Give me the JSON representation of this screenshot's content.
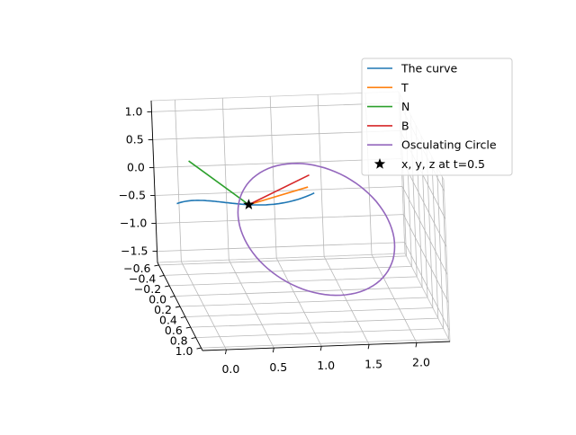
{
  "chart_data": {
    "type": "line3d",
    "title": "",
    "x_axis": {
      "ticks": [
        0.0,
        0.5,
        1.0,
        1.5,
        2.0
      ],
      "tick_labels": [
        "0.0",
        "0.5",
        "1.0",
        "1.5",
        "2.0"
      ],
      "range": [
        -0.25,
        2.35
      ]
    },
    "y_axis": {
      "ticks": [
        -0.6,
        -0.4,
        -0.2,
        0.0,
        0.2,
        0.4,
        0.6,
        0.8,
        1.0
      ],
      "tick_labels": [
        "−0.6",
        "−0.4",
        "−0.2",
        "0.0",
        "0.2",
        "0.4",
        "0.6",
        "0.8",
        "1.0"
      ],
      "range": [
        -0.65,
        1.05
      ]
    },
    "z_axis": {
      "ticks": [
        -1.5,
        -1.0,
        -0.5,
        0.0,
        0.5,
        1.0
      ],
      "tick_labels": [
        "−1.5",
        "−1.0",
        "−0.5",
        "0.0",
        "0.5",
        "1.0"
      ],
      "range": [
        -1.7,
        1.2
      ]
    },
    "grid": true,
    "legend_position": "top-right",
    "point": {
      "t": 0.5,
      "x": 0.5,
      "y": 0.25,
      "z": 0.125
    },
    "series": [
      {
        "name": "The curve",
        "color": "#1f77b4",
        "kind": "curve",
        "param": "t",
        "t_range": [
          -0.2,
          1.0
        ],
        "samples": 60
      },
      {
        "name": "T",
        "color": "#ff7f0e",
        "kind": "segment",
        "start": [
          0.5,
          0.25,
          0.125
        ],
        "end": [
          1.0,
          0.75,
          0.875
        ]
      },
      {
        "name": "N",
        "color": "#2ca02c",
        "kind": "segment",
        "start": [
          0.5,
          0.25,
          0.125
        ],
        "end": [
          -0.1,
          0.2,
          0.9
        ]
      },
      {
        "name": "B",
        "color": "#d62728",
        "kind": "segment",
        "start": [
          0.5,
          0.25,
          0.125
        ],
        "end": [
          1.3,
          -0.35,
          0.05
        ]
      },
      {
        "name": "Osculating Circle",
        "color": "#9467bd",
        "kind": "circle",
        "center": [
          1.25,
          0.05,
          -0.55
        ],
        "radius": 0.85,
        "samples": 90
      },
      {
        "name": "x, y, z at t=0.5",
        "color": "#000000",
        "kind": "marker",
        "marker": "star",
        "point": [
          0.5,
          0.25,
          0.125
        ]
      }
    ]
  }
}
